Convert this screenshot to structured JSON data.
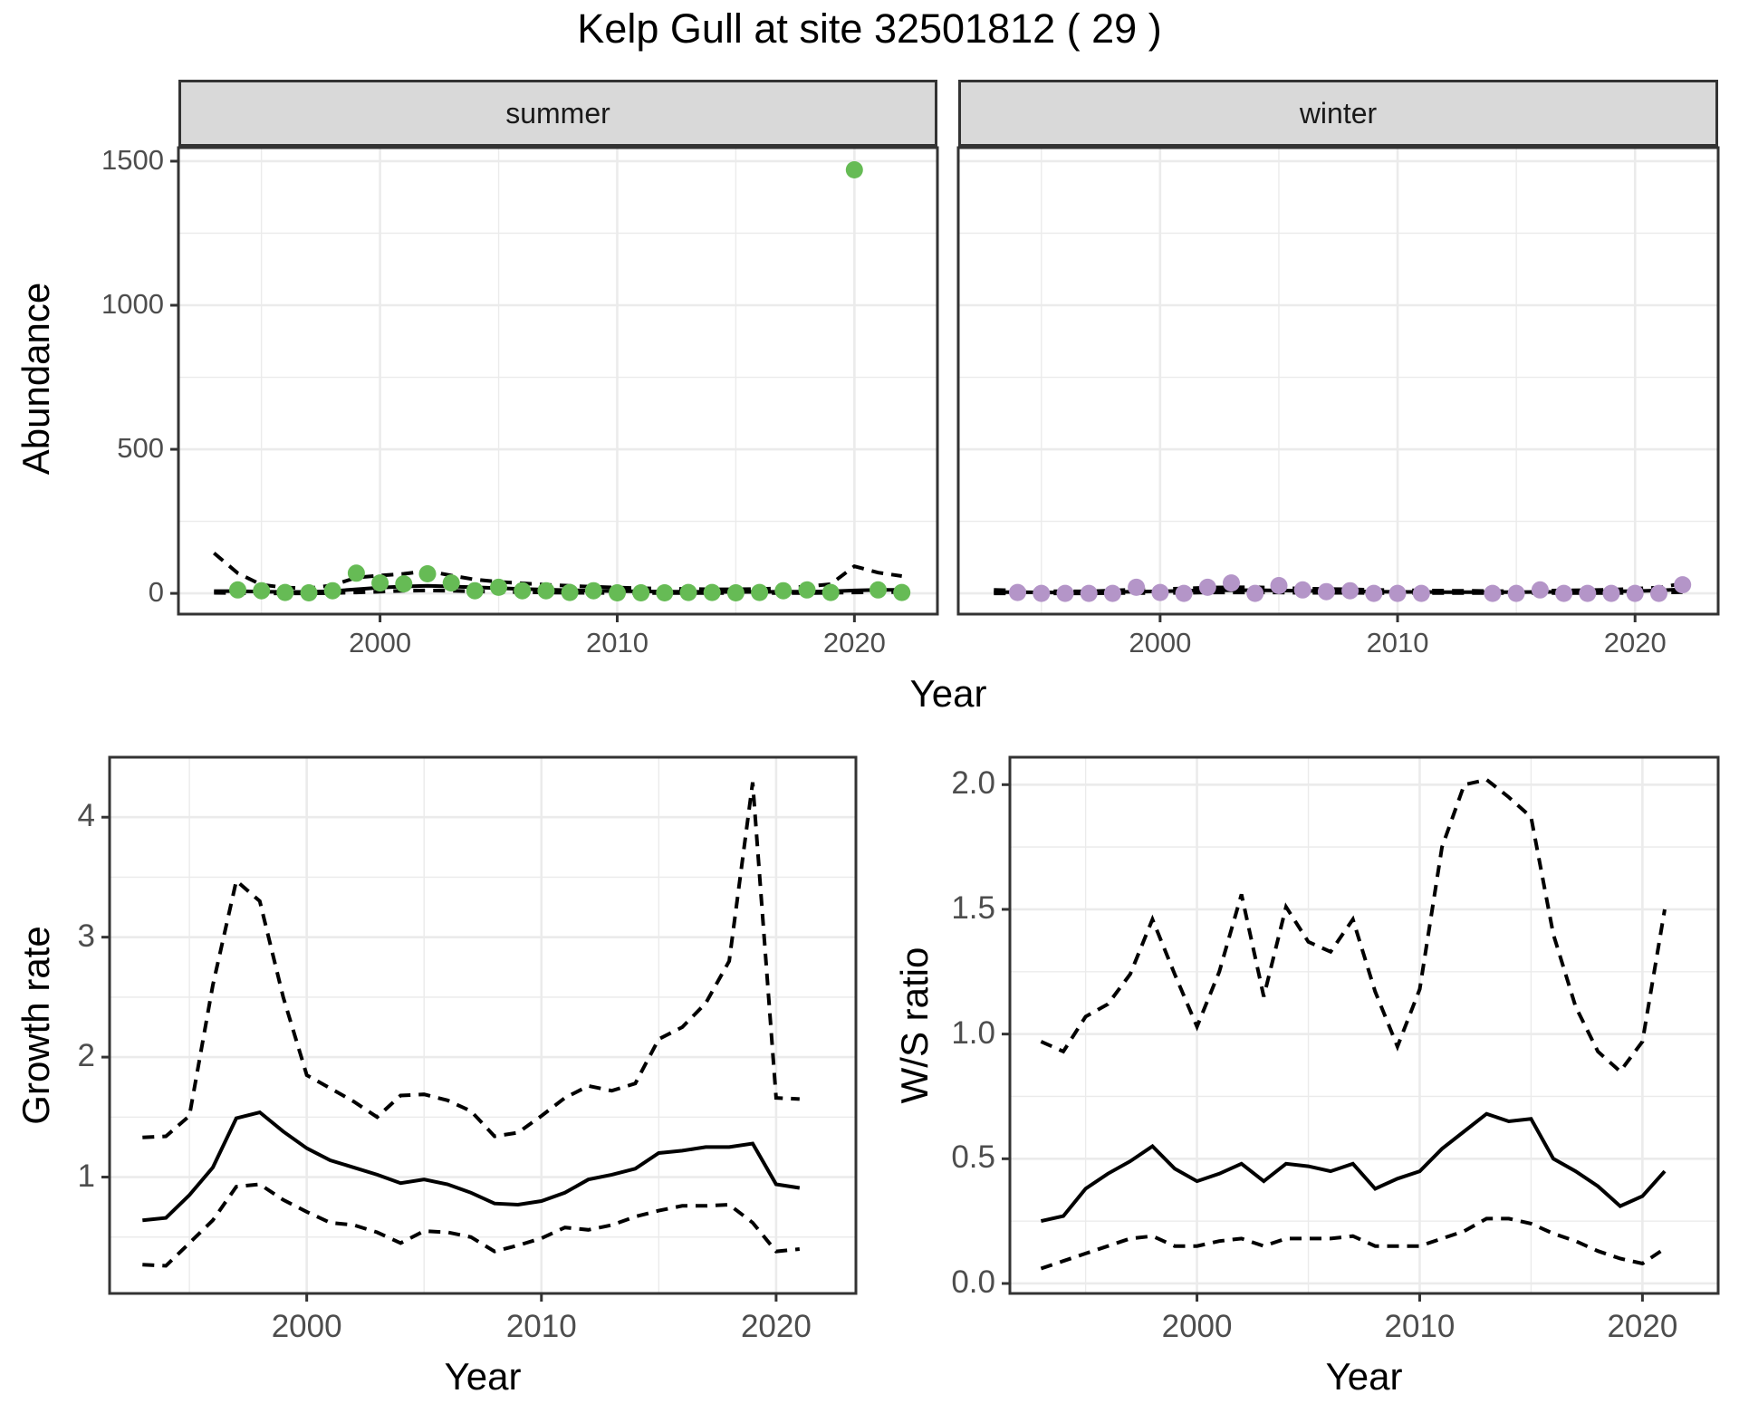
{
  "chart_data": {
    "figure_title": "Kelp Gull at site 32501812 ( 29 )",
    "colors": {
      "summer_point": "#66BB55",
      "winter_point": "#B495C8",
      "line": "#000000",
      "grid": "#EBEBEB",
      "strip_bg": "#D9D9D9",
      "panel_border": "#333333",
      "tick_text": "#4D4D4D"
    },
    "abundance": {
      "type": "scatter",
      "ylabel": "Abundance",
      "xlabel": "Year",
      "x_ticks": [
        2000,
        2010,
        2020
      ],
      "x_minor": [
        1995,
        2005,
        2015
      ],
      "y_ticks": [
        0,
        500,
        1000,
        1500
      ],
      "y_tick_labels": [
        "0",
        "500",
        "1000",
        "1500"
      ],
      "y_minor": [
        250,
        750,
        1250
      ],
      "x_range": [
        1991.5,
        2023.5
      ],
      "y_range": [
        -72,
        1547
      ],
      "facets": [
        {
          "label": "summer",
          "points_years": [
            1994,
            1995,
            1996,
            1997,
            1998,
            1999,
            2000,
            2001,
            2002,
            2003,
            2004,
            2005,
            2006,
            2007,
            2008,
            2009,
            2010,
            2011,
            2012,
            2013,
            2014,
            2015,
            2016,
            2017,
            2018,
            2019,
            2020,
            2021,
            2022
          ],
          "points_values": [
            12,
            9,
            3,
            2,
            9,
            70,
            36,
            33,
            68,
            36,
            9,
            21,
            9,
            9,
            3,
            9,
            2,
            2,
            2,
            3,
            3,
            2,
            3,
            9,
            12,
            3,
            1470,
            12,
            3
          ],
          "fit_years": [
            1993,
            1994,
            1995,
            1996,
            1997,
            1998,
            1999,
            2000,
            2001,
            2002,
            2003,
            2004,
            2005,
            2006,
            2007,
            2008,
            2009,
            2010,
            2011,
            2012,
            2013,
            2014,
            2015,
            2016,
            2017,
            2018,
            2019,
            2020,
            2021,
            2022
          ],
          "fit": [
            8,
            8,
            6,
            5,
            5,
            8,
            14,
            20,
            24,
            26,
            24,
            21,
            18,
            15,
            13,
            11,
            9,
            8,
            7,
            6,
            6,
            5,
            5,
            5,
            6,
            6,
            7,
            10,
            12,
            12
          ],
          "upper": [
            140,
            70,
            30,
            20,
            18,
            28,
            55,
            62,
            68,
            78,
            62,
            48,
            40,
            35,
            30,
            26,
            23,
            20,
            18,
            16,
            15,
            14,
            14,
            15,
            18,
            24,
            32,
            94,
            72,
            60
          ],
          "lower": [
            2,
            1,
            0,
            0,
            0,
            1,
            3,
            6,
            9,
            10,
            9,
            7,
            5,
            4,
            3,
            2,
            2,
            1,
            1,
            1,
            1,
            1,
            1,
            1,
            1,
            1,
            2,
            3,
            4,
            4
          ]
        },
        {
          "label": "winter",
          "points_years": [
            1994,
            1995,
            1996,
            1997,
            1998,
            1999,
            2000,
            2001,
            2002,
            2003,
            2004,
            2005,
            2006,
            2007,
            2008,
            2009,
            2010,
            2011,
            2014,
            2015,
            2016,
            2017,
            2018,
            2019,
            2020,
            2021,
            2022
          ],
          "points_values": [
            3,
            0,
            0,
            0,
            0,
            21,
            3,
            0,
            21,
            36,
            0,
            27,
            12,
            6,
            9,
            0,
            0,
            0,
            0,
            0,
            12,
            0,
            0,
            0,
            0,
            0,
            30
          ],
          "fit_years": [
            1993,
            1994,
            1995,
            1996,
            1997,
            1998,
            1999,
            2000,
            2001,
            2002,
            2003,
            2004,
            2005,
            2006,
            2007,
            2008,
            2009,
            2010,
            2011,
            2012,
            2013,
            2014,
            2015,
            2016,
            2017,
            2018,
            2019,
            2020,
            2021,
            2022
          ],
          "fit": [
            4,
            4,
            3,
            3,
            3,
            5,
            6,
            7,
            9,
            10,
            11,
            11,
            10,
            9,
            8,
            7,
            6,
            5,
            5,
            4,
            4,
            4,
            4,
            5,
            5,
            6,
            7,
            8,
            10,
            14
          ],
          "upper": [
            12,
            10,
            8,
            7,
            7,
            10,
            13,
            15,
            17,
            20,
            21,
            21,
            19,
            17,
            15,
            14,
            12,
            11,
            10,
            9,
            9,
            8,
            8,
            9,
            10,
            11,
            13,
            16,
            20,
            34
          ],
          "lower": [
            0,
            0,
            0,
            0,
            0,
            1,
            1,
            1,
            2,
            3,
            3,
            3,
            3,
            2,
            2,
            2,
            1,
            1,
            1,
            1,
            1,
            1,
            1,
            1,
            1,
            1,
            1,
            2,
            3,
            4
          ]
        }
      ]
    },
    "growth_rate": {
      "type": "line",
      "ylabel": "Growth rate",
      "xlabel": "Year",
      "x_ticks": [
        2000,
        2010,
        2020
      ],
      "x_minor": [
        1995,
        2005,
        2015
      ],
      "y_ticks": [
        1,
        2,
        3,
        4
      ],
      "y_tick_labels": [
        "1",
        "2",
        "3",
        "4"
      ],
      "y_minor": [
        0.5,
        1.5,
        2.5,
        3.5,
        4.5
      ],
      "x_range": [
        1991.6,
        2023.4
      ],
      "y_range": [
        0.03,
        4.5
      ],
      "years": [
        1993,
        1994,
        1995,
        1996,
        1997,
        1998,
        1999,
        2000,
        2001,
        2002,
        2003,
        2004,
        2005,
        2006,
        2007,
        2008,
        2009,
        2010,
        2011,
        2012,
        2013,
        2014,
        2015,
        2016,
        2017,
        2018,
        2019,
        2020,
        2021
      ],
      "fit": [
        0.64,
        0.66,
        0.85,
        1.08,
        1.49,
        1.54,
        1.38,
        1.24,
        1.14,
        1.08,
        1.02,
        0.95,
        0.98,
        0.94,
        0.87,
        0.78,
        0.77,
        0.8,
        0.87,
        0.98,
        1.02,
        1.07,
        1.2,
        1.22,
        1.25,
        1.25,
        1.28,
        0.94,
        0.91
      ],
      "upper": [
        1.33,
        1.34,
        1.51,
        2.6,
        3.47,
        3.3,
        2.5,
        1.85,
        1.74,
        1.63,
        1.5,
        1.68,
        1.69,
        1.64,
        1.55,
        1.34,
        1.37,
        1.51,
        1.66,
        1.76,
        1.72,
        1.78,
        2.15,
        2.25,
        2.45,
        2.8,
        4.29,
        1.66,
        1.65
      ],
      "lower": [
        0.27,
        0.26,
        0.45,
        0.64,
        0.92,
        0.94,
        0.81,
        0.71,
        0.62,
        0.6,
        0.54,
        0.45,
        0.55,
        0.54,
        0.5,
        0.38,
        0.43,
        0.49,
        0.58,
        0.56,
        0.6,
        0.67,
        0.72,
        0.76,
        0.76,
        0.77,
        0.62,
        0.38,
        0.4
      ]
    },
    "ws_ratio": {
      "type": "line",
      "ylabel": "W/S ratio",
      "xlabel": "Year",
      "x_ticks": [
        2000,
        2010,
        2020
      ],
      "x_minor": [
        1995,
        2005,
        2015
      ],
      "y_ticks": [
        0.0,
        0.5,
        1.0,
        1.5,
        2.0
      ],
      "y_tick_labels": [
        "0.0",
        "0.5",
        "1.0",
        "1.5",
        "2.0"
      ],
      "y_minor": [
        0.25,
        0.75,
        1.25,
        1.75
      ],
      "x_range": [
        1991.6,
        2023.4
      ],
      "y_range": [
        -0.04,
        2.11
      ],
      "years": [
        1993,
        1994,
        1995,
        1996,
        1997,
        1998,
        1999,
        2000,
        2001,
        2002,
        2003,
        2004,
        2005,
        2006,
        2007,
        2008,
        2009,
        2010,
        2011,
        2012,
        2013,
        2014,
        2015,
        2016,
        2017,
        2018,
        2019,
        2020,
        2021
      ],
      "fit": [
        0.25,
        0.27,
        0.38,
        0.44,
        0.49,
        0.55,
        0.46,
        0.41,
        0.44,
        0.48,
        0.41,
        0.48,
        0.47,
        0.45,
        0.48,
        0.38,
        0.42,
        0.45,
        0.54,
        0.61,
        0.68,
        0.65,
        0.66,
        0.5,
        0.45,
        0.39,
        0.31,
        0.35,
        0.45
      ],
      "upper": [
        0.97,
        0.93,
        1.07,
        1.12,
        1.24,
        1.46,
        1.24,
        1.03,
        1.25,
        1.56,
        1.15,
        1.51,
        1.37,
        1.33,
        1.46,
        1.17,
        0.95,
        1.18,
        1.75,
        2.0,
        2.02,
        1.95,
        1.87,
        1.4,
        1.11,
        0.93,
        0.85,
        0.97,
        1.5
      ],
      "lower": [
        0.06,
        0.09,
        0.12,
        0.15,
        0.18,
        0.19,
        0.15,
        0.15,
        0.17,
        0.18,
        0.15,
        0.18,
        0.18,
        0.18,
        0.19,
        0.15,
        0.15,
        0.15,
        0.18,
        0.21,
        0.26,
        0.26,
        0.24,
        0.2,
        0.17,
        0.13,
        0.1,
        0.08,
        0.14
      ]
    }
  }
}
